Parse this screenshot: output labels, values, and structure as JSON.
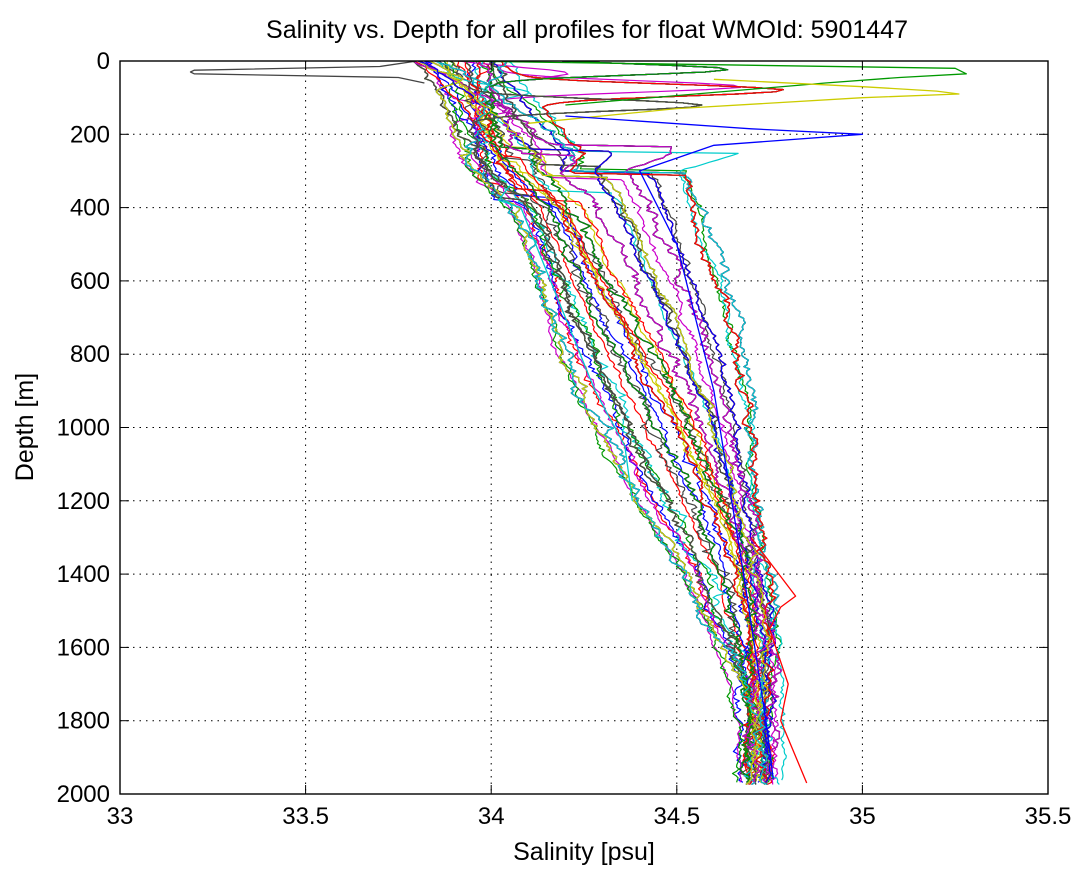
{
  "chart_data": {
    "type": "line",
    "title": "Salinity vs. Depth for all profiles for float WMOId: 5901447",
    "xlabel": "Salinity [psu]",
    "ylabel": "Depth [m]",
    "xlim": [
      33,
      35.5
    ],
    "ylim": [
      0,
      2000
    ],
    "y_reversed": true,
    "grid": true,
    "grid_style": "dotted",
    "legend": "none",
    "x_ticks": [
      "33",
      "33.5",
      "34",
      "34.5",
      "35",
      "35.5"
    ],
    "y_ticks": [
      "0",
      "200",
      "400",
      "600",
      "800",
      "1000",
      "1200",
      "1400",
      "1600",
      "1800",
      "2000"
    ],
    "series_colors": [
      "#ff0000",
      "#0000ff",
      "#009900",
      "#cc00cc",
      "#00cccc",
      "#cccc00",
      "#444444"
    ],
    "profile_count": 210,
    "envelope": {
      "depth": [
        0,
        100,
        200,
        300,
        400,
        600,
        800,
        1000,
        1200,
        1400,
        1600,
        1800,
        1980
      ],
      "salinity_min": [
        33.75,
        33.8,
        33.85,
        33.95,
        34.05,
        34.12,
        34.18,
        34.28,
        34.38,
        34.52,
        34.6,
        34.66,
        34.68
      ],
      "salinity_median": [
        33.85,
        34.0,
        34.05,
        34.1,
        34.2,
        34.3,
        34.42,
        34.53,
        34.62,
        34.68,
        34.71,
        34.73,
        34.74
      ],
      "salinity_max": [
        35.28,
        35.28,
        35.0,
        34.58,
        34.6,
        34.66,
        34.7,
        34.72,
        34.72,
        34.75,
        34.78,
        34.82,
        34.85
      ]
    },
    "notable_profiles": [
      {
        "depth": [
          0,
          15,
          25,
          30,
          35,
          45,
          60
        ],
        "salinity": [
          33.8,
          33.7,
          33.2,
          33.19,
          33.2,
          33.75,
          33.82
        ]
      },
      {
        "depth": [
          0,
          10,
          20,
          35,
          45,
          60,
          120
        ],
        "salinity": [
          33.9,
          34.6,
          35.25,
          35.28,
          35.1,
          34.9,
          34.2
        ]
      },
      {
        "depth": [
          50,
          70,
          82,
          90,
          100,
          130,
          170
        ],
        "salinity": [
          34.6,
          35.0,
          35.2,
          35.26,
          35.0,
          34.5,
          34.1
        ]
      },
      {
        "depth": [
          150,
          185,
          200,
          230,
          300,
          500,
          900,
          1400,
          1800,
          1960
        ],
        "salinity": [
          34.2,
          34.7,
          35.0,
          34.6,
          34.4,
          34.5,
          34.6,
          34.68,
          34.74,
          34.76
        ]
      },
      {
        "depth": [
          340,
          380,
          400,
          500,
          700,
          900,
          1050,
          1200
        ],
        "salinity": [
          34.05,
          34.02,
          34.08,
          34.12,
          34.2,
          34.28,
          34.36,
          34.38
        ]
      },
      {
        "depth": [
          1300,
          1460,
          1490,
          1550,
          1700,
          1800,
          1970
        ],
        "salinity": [
          34.7,
          34.82,
          34.78,
          34.75,
          34.8,
          34.78,
          34.85
        ]
      }
    ]
  }
}
